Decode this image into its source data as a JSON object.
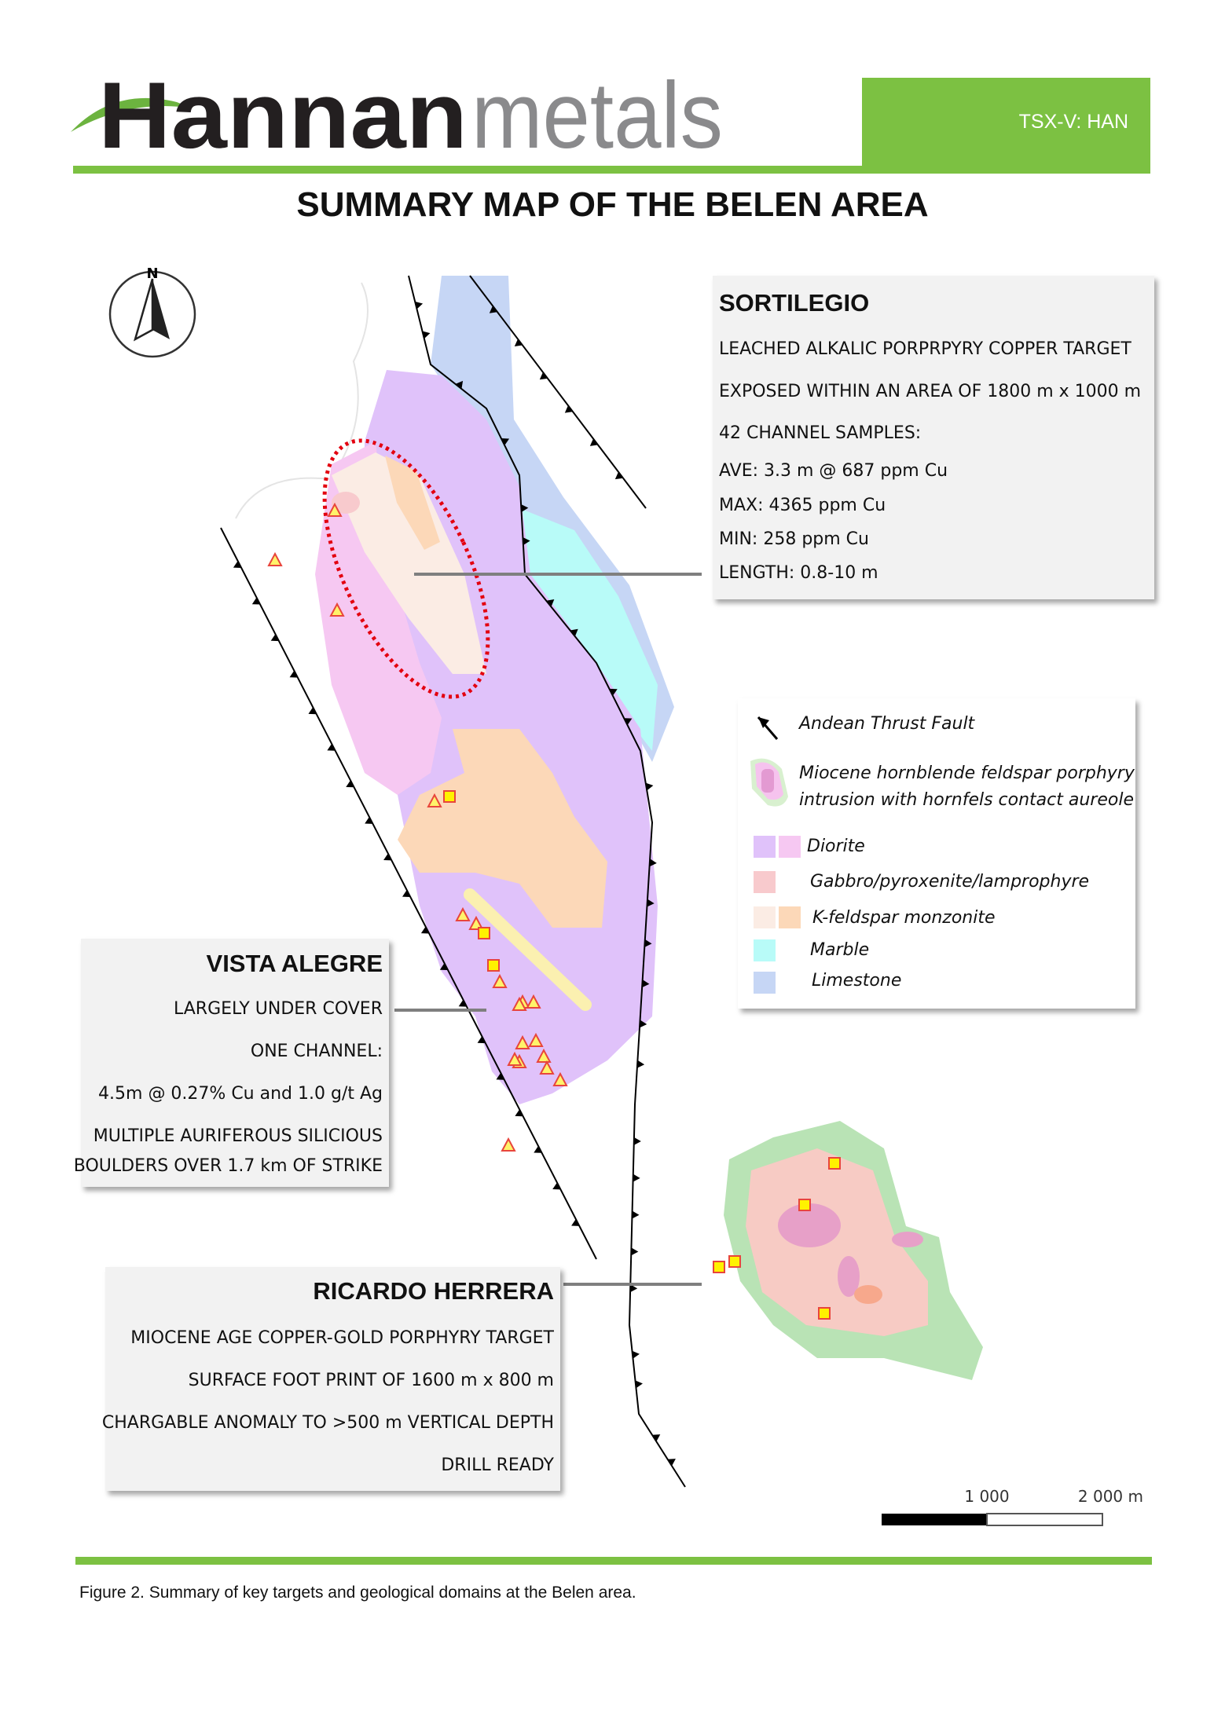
{
  "header": {
    "logo_text_dark": "Hannan",
    "logo_text_light": "metals",
    "ticker": "TSX-V: HAN",
    "brand_green": "#7cc142"
  },
  "title": "SUMMARY MAP OF THE BELEN AREA",
  "north_label": "N",
  "sortilegio": {
    "title": "SORTILEGIO",
    "lines": [
      "LEACHED ALKALIC PORPRPYRY COPPER TARGET",
      "EXPOSED WITHIN AN AREA OF 1800 m x 1000 m",
      "42 CHANNEL SAMPLES:",
      "AVE: 3.3 m @ 687 ppm Cu",
      "MAX: 4365 ppm Cu",
      "MIN: 258 ppm Cu",
      "LENGTH: 0.8-10 m"
    ]
  },
  "vista_alegre": {
    "title": "VISTA ALEGRE",
    "lines": [
      "LARGELY UNDER COVER",
      "ONE CHANNEL:",
      "4.5m @ 0.27% Cu and 1.0 g/t Ag",
      "MULTIPLE AURIFEROUS SILICIOUS",
      "BOULDERS OVER 1.7 km OF STRIKE"
    ]
  },
  "ricardo_herrera": {
    "title": "RICARDO HERRERA",
    "lines": [
      "MIOCENE AGE COPPER-GOLD PORPHYRY TARGET",
      "SURFACE FOOT PRINT OF 1600 m x 800 m",
      "CHARGABLE ANOMALY TO  >500 m VERTICAL DEPTH",
      "DRILL READY"
    ]
  },
  "legend": {
    "items": [
      {
        "label": "Andean Thrust Fault",
        "icon": "thrust-fault-icon"
      },
      {
        "label": "Miocene hornblende feldspar porphyry",
        "label2": "intrusion with hornfels contact aureole",
        "colors": [
          "#d8f0cf",
          "#f6c3ee",
          "#e39ad2"
        ]
      },
      {
        "label": "Diorite",
        "colors": [
          "#e0c2fa",
          "#f6c8f2"
        ]
      },
      {
        "label": "Gabbro/pyroxenite/lamprophyre",
        "colors": [
          "#f8cacd"
        ]
      },
      {
        "label": "K-feldspar monzonite",
        "colors": [
          "#fbece4",
          "#fcd8b8"
        ]
      },
      {
        "label": "Marble",
        "colors": [
          "#b8fbf8"
        ]
      },
      {
        "label": "Limestone",
        "colors": [
          "#c6d6f5"
        ]
      }
    ]
  },
  "scale_bar": {
    "labels": [
      "1 000",
      "2 000 m"
    ]
  },
  "caption": "Figure 2. Summary of key targets and geological domains at the Belen area."
}
